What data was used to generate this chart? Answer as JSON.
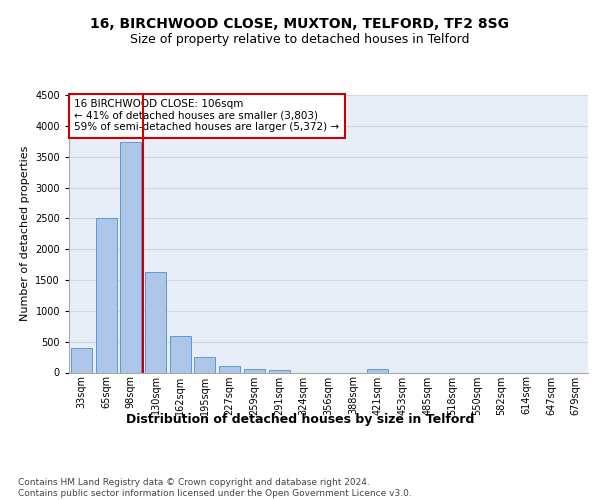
{
  "title1": "16, BIRCHWOOD CLOSE, MUXTON, TELFORD, TF2 8SG",
  "title2": "Size of property relative to detached houses in Telford",
  "xlabel": "Distribution of detached houses by size in Telford",
  "ylabel": "Number of detached properties",
  "categories": [
    "33sqm",
    "65sqm",
    "98sqm",
    "130sqm",
    "162sqm",
    "195sqm",
    "227sqm",
    "259sqm",
    "291sqm",
    "324sqm",
    "356sqm",
    "388sqm",
    "421sqm",
    "453sqm",
    "485sqm",
    "518sqm",
    "550sqm",
    "582sqm",
    "614sqm",
    "647sqm",
    "679sqm"
  ],
  "values": [
    390,
    2500,
    3730,
    1630,
    590,
    245,
    105,
    60,
    38,
    0,
    0,
    0,
    50,
    0,
    0,
    0,
    0,
    0,
    0,
    0,
    0
  ],
  "bar_color": "#aec6e8",
  "bar_edge_color": "#5b9bd5",
  "vline_x_index": 2,
  "vline_color": "#cc0000",
  "annotation_text": "16 BIRCHWOOD CLOSE: 106sqm\n← 41% of detached houses are smaller (3,803)\n59% of semi-detached houses are larger (5,372) →",
  "annotation_box_color": "#ffffff",
  "annotation_box_edge": "#cc0000",
  "ylim": [
    0,
    4500
  ],
  "yticks": [
    0,
    500,
    1000,
    1500,
    2000,
    2500,
    3000,
    3500,
    4000,
    4500
  ],
  "grid_color": "#d0d8e8",
  "bg_color": "#e8eef8",
  "footer": "Contains HM Land Registry data © Crown copyright and database right 2024.\nContains public sector information licensed under the Open Government Licence v3.0.",
  "title1_fontsize": 10,
  "title2_fontsize": 9,
  "xlabel_fontsize": 9,
  "ylabel_fontsize": 8,
  "footer_fontsize": 6.5,
  "tick_fontsize": 7,
  "annotation_fontsize": 7.5
}
